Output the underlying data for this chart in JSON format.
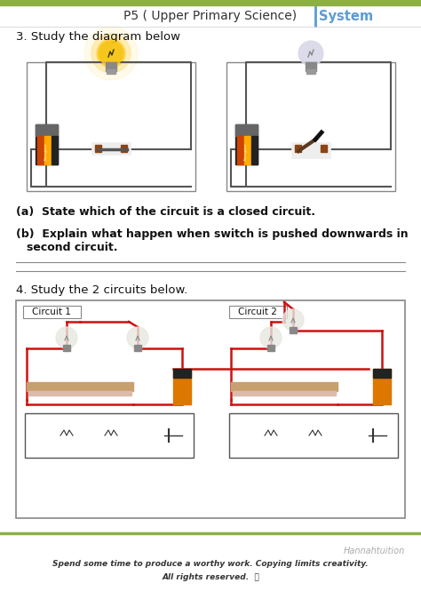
{
  "title_left": "P5 ( Upper Primary Science)",
  "title_right": "System",
  "title_separator_color": "#5b9bd5",
  "title_right_color": "#5b9bd5",
  "section3_heading": "3. Study the diagram below",
  "section4_heading": "4. Study the 2 circuits below.",
  "footer_right": "Hannahtuition",
  "footer_line1": "Spend some time to produce a worthy work. Copying limits creativity.",
  "footer_line2": "All rights reserved.  ⓞ",
  "bg_color": "#ffffff",
  "border_top_color": "#8db043",
  "circuit1_label": "Circuit 1",
  "circuit2_label": "Circuit 2"
}
